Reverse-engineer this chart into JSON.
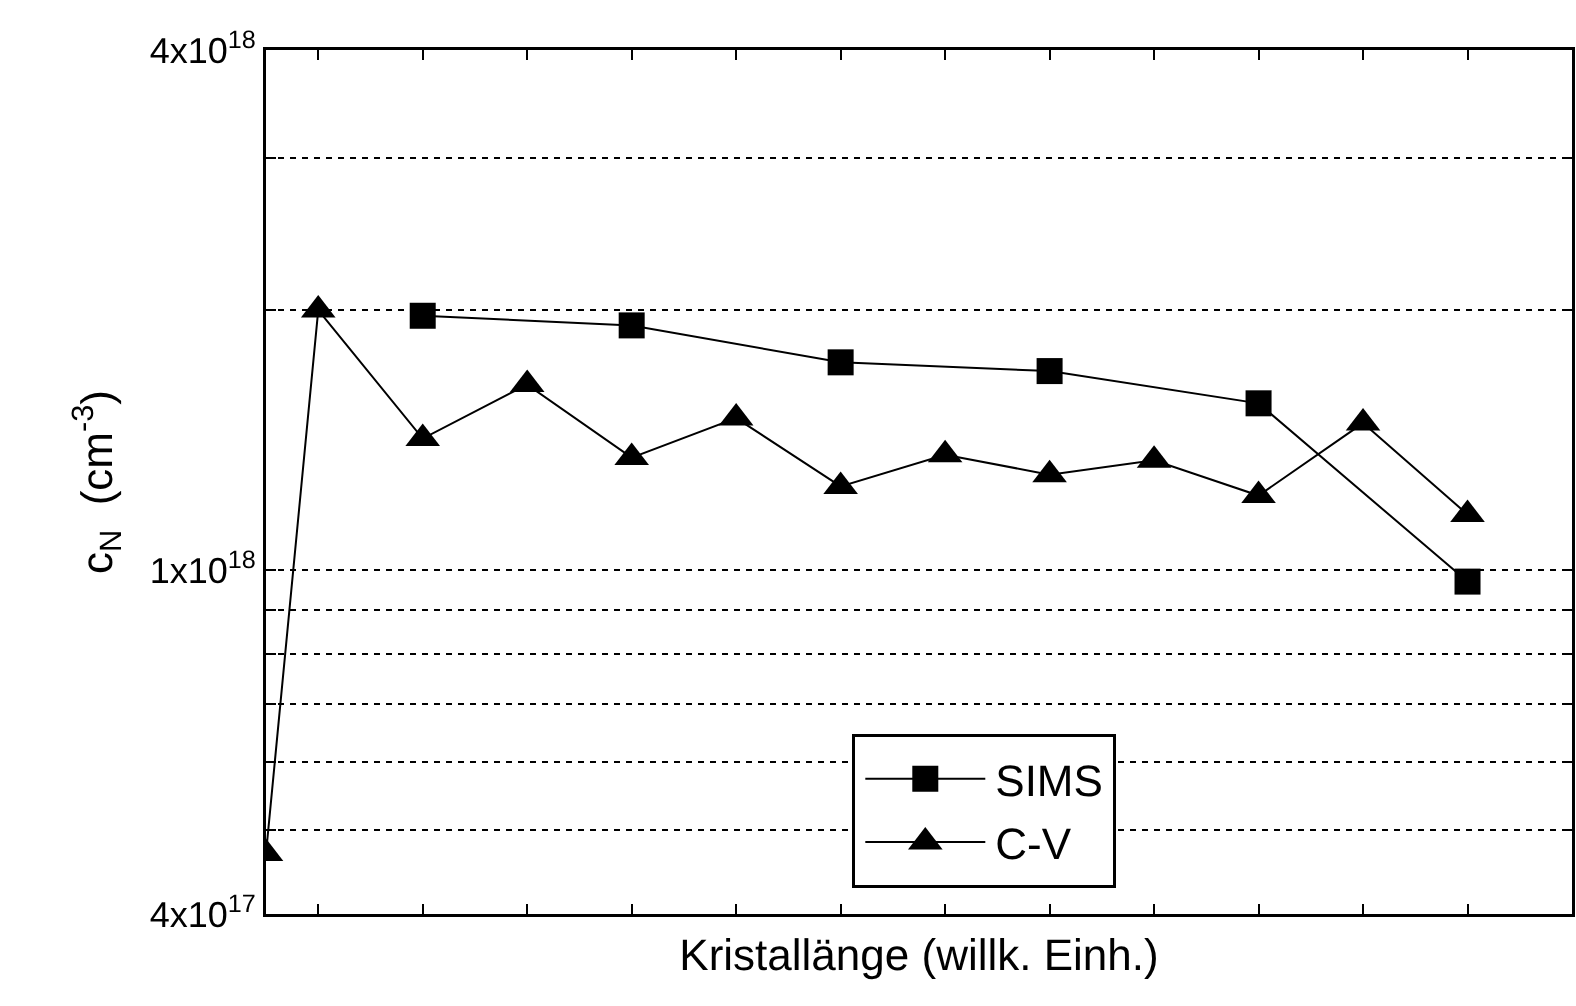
{
  "chart_data": {
    "type": "line",
    "xlabel": "Kristallänge (willk. Einh.)",
    "ylabel": "c$_{N}$  (cm$^{-3}$)",
    "log": "y",
    "categories": [
      null,
      null,
      null,
      null,
      null,
      null,
      null,
      null,
      null,
      null,
      null,
      null,
      null,
      null,
      null,
      null,
      null,
      null,
      null,
      null,
      null,
      null,
      null,
      null,
      null,
      null
    ],
    "ylim": [
      4e+17,
      4e+18
    ],
    "yticks": [
      {
        "value": 4e+17,
        "label": "4x10$^{17}$"
      },
      {
        "value": 5e+17,
        "label": null
      },
      {
        "value": 6e+17,
        "label": null
      },
      {
        "value": 7e+17,
        "label": null
      },
      {
        "value": 8e+17,
        "label": null
      },
      {
        "value": 9e+17,
        "label": null
      },
      {
        "value": 1e+18,
        "label": "1x10$^{18}$"
      },
      {
        "value": 2e+18,
        "label": null
      },
      {
        "value": 3e+18,
        "label": null
      },
      {
        "value": 4e+18,
        "label": "4x10$^{18}$"
      }
    ],
    "grid": "y",
    "legend": "bottom",
    "series": [
      {
        "name": "SIMS",
        "color": "#000000",
        "marker": "square",
        "values": [
          null,
          null,
          null,
          1.97e+18,
          null,
          null,
          null,
          1.92e+18,
          null,
          null,
          null,
          1.74e+18,
          null,
          null,
          null,
          1.7e+18,
          null,
          null,
          null,
          1.56e+18,
          null,
          null,
          null,
          9.7e+17,
          null,
          null
        ]
      },
      {
        "name": "C-V",
        "color": "#000000",
        "marker": "triangle",
        "values": [
          4.7e+17,
          2e+18,
          null,
          1.42e+18,
          null,
          1.64e+18,
          null,
          1.35e+18,
          null,
          1.5e+18,
          null,
          1.25e+18,
          null,
          1.36e+18,
          null,
          1.29e+18,
          null,
          1.34e+18,
          null,
          1.22e+18,
          null,
          1.48e+18,
          null,
          1.16e+18,
          null,
          null
        ]
      }
    ]
  }
}
